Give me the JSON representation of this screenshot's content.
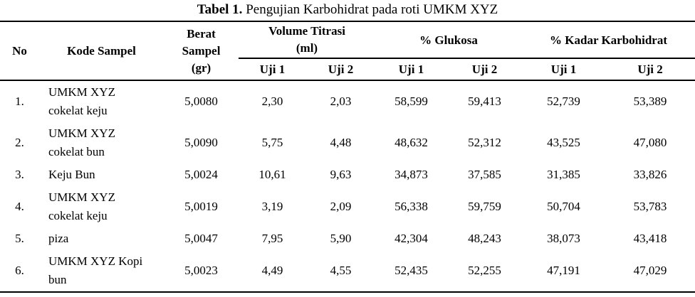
{
  "caption": {
    "label": "Tabel 1.",
    "text": "Pengujian Karbohidrat pada roti UMKM XYZ"
  },
  "table": {
    "headers": {
      "no": "No",
      "kode_sampel": "Kode Sampel",
      "berat_sampel": "Berat Sampel (gr)",
      "volume_titrasi": "Volume Titrasi (ml)",
      "glukosa": "% Glukosa",
      "kadar_karbohidrat": "% Kadar Karbohidrat",
      "uji1": "Uji 1",
      "uji2": "Uji 2"
    },
    "rows": [
      {
        "no": "1.",
        "kode": "UMKM XYZ cokelat keju",
        "berat": "5,0080",
        "vol_uji1": "2,30",
        "vol_uji2": "2,03",
        "glu_uji1": "58,599",
        "glu_uji2": "59,413",
        "kar_uji1": "52,739",
        "kar_uji2": "53,389"
      },
      {
        "no": "2.",
        "kode": "UMKM XYZ cokelat bun",
        "berat": "5,0090",
        "vol_uji1": "5,75",
        "vol_uji2": "4,48",
        "glu_uji1": "48,632",
        "glu_uji2": "52,312",
        "kar_uji1": "43,525",
        "kar_uji2": "47,080"
      },
      {
        "no": "3.",
        "kode": "Keju Bun",
        "berat": "5,0024",
        "vol_uji1": "10,61",
        "vol_uji2": "9,63",
        "glu_uji1": "34,873",
        "glu_uji2": "37,585",
        "kar_uji1": "31,385",
        "kar_uji2": "33,826"
      },
      {
        "no": "4.",
        "kode": "UMKM XYZ cokelat keju",
        "berat": "5,0019",
        "vol_uji1": "3,19",
        "vol_uji2": "2,09",
        "glu_uji1": "56,338",
        "glu_uji2": "59,759",
        "kar_uji1": "50,704",
        "kar_uji2": "53,783"
      },
      {
        "no": "5.",
        "kode": "piza",
        "berat": "5,0047",
        "vol_uji1": "7,95",
        "vol_uji2": "5,90",
        "glu_uji1": "42,304",
        "glu_uji2": "48,243",
        "kar_uji1": "38,073",
        "kar_uji2": "43,418"
      },
      {
        "no": "6.",
        "kode": "UMKM XYZ Kopi bun",
        "berat": "5,0023",
        "vol_uji1": "4,49",
        "vol_uji2": "4,55",
        "glu_uji1": "52,435",
        "glu_uji2": "52,255",
        "kar_uji1": "47,191",
        "kar_uji2": "47,029"
      }
    ]
  }
}
